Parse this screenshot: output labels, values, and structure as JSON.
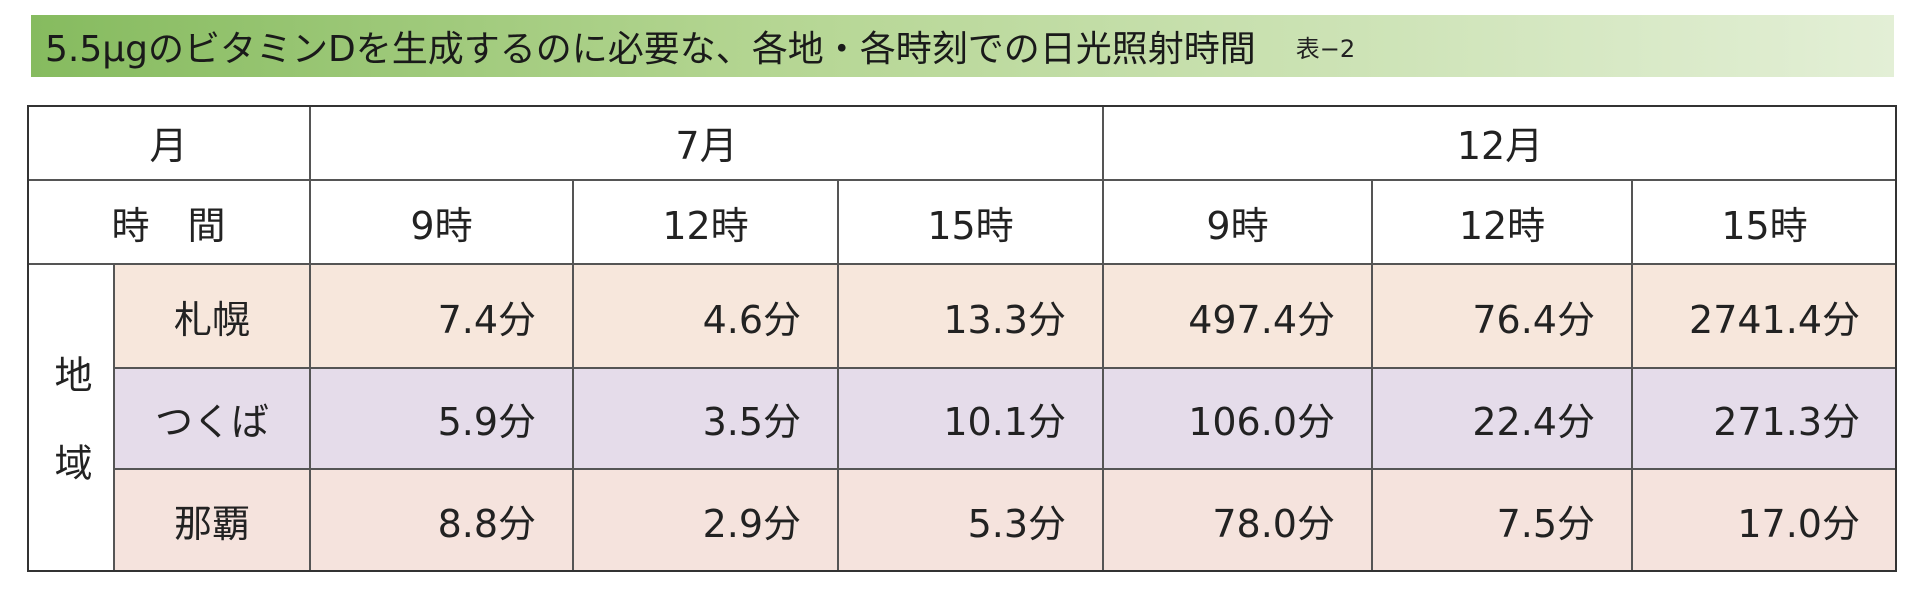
{
  "header": {
    "title": "5.5μgのビタミンDを生成するのに必要な、各地・各時刻での日光照射時間",
    "table_label": "表−2"
  },
  "table": {
    "month_header": "月",
    "months": [
      "7月",
      "12月"
    ],
    "time_header": "時　間",
    "times": [
      "9時",
      "12時",
      "15時",
      "9時",
      "12時",
      "15時"
    ],
    "region_header": "地域",
    "rows": [
      {
        "region": "札幌",
        "values": [
          "7.4分",
          "4.6分",
          "13.3分",
          "497.4分",
          "76.4分",
          "2741.4分"
        ]
      },
      {
        "region": "つくば",
        "values": [
          "5.9分",
          "3.5分",
          "10.1分",
          "106.0分",
          "22.4分",
          "271.3分"
        ]
      },
      {
        "region": "那覇",
        "values": [
          "8.8分",
          "2.9分",
          "5.3分",
          "78.0分",
          "7.5分",
          "17.0分"
        ]
      }
    ]
  }
}
